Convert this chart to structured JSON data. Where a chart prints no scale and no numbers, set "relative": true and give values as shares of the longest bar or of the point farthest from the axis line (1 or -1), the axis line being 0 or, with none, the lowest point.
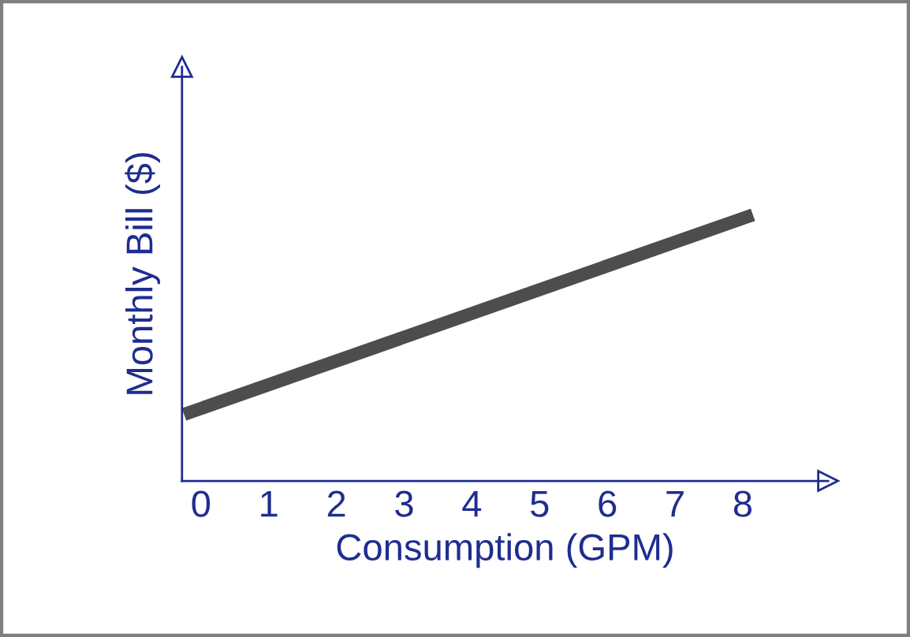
{
  "chart_data": {
    "type": "line",
    "relative": true,
    "xlabel": "Consumption (GPM)",
    "ylabel": "Monthly Bill ($)",
    "x": [
      -0.25,
      8.15
    ],
    "series": [
      {
        "color": "#4d4d4d",
        "values": [
          0.25,
          1.0
        ]
      }
    ],
    "xlim": [
      -0.28,
      9.26
    ],
    "xticks": [
      0,
      1,
      2,
      3,
      4,
      5,
      6,
      7,
      8
    ],
    "grid": false,
    "legend": false
  }
}
